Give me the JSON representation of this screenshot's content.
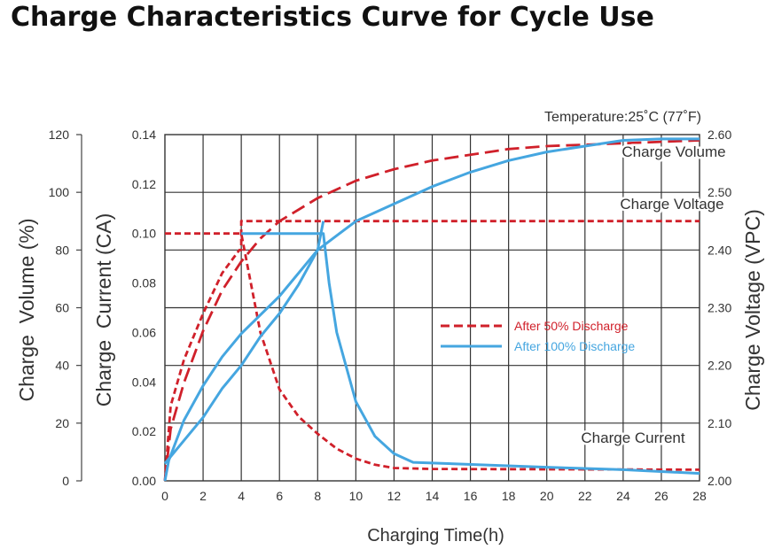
{
  "page": {
    "title": "Charge Characteristics Curve for Cycle Use"
  },
  "chart_data": {
    "type": "line",
    "title": "Charge Characteristics Curve for Cycle Use",
    "annotation": "Temperature:25˚C (77˚F)",
    "xlabel": "Charging Time(h)",
    "y_volume_label": "Charge  Volume (%)",
    "y_current_label": "Charge  Current (CA)",
    "y_voltage_label": "Charge Voltage (VPC)",
    "x": {
      "lim": [
        0,
        28
      ],
      "ticks": [
        0,
        2,
        4,
        6,
        8,
        10,
        12,
        14,
        16,
        18,
        20,
        22,
        24,
        26,
        28
      ]
    },
    "y_volume": {
      "lim": [
        0,
        120
      ],
      "ticks": [
        0,
        20,
        40,
        60,
        80,
        100,
        120
      ]
    },
    "y_current": {
      "lim": [
        0,
        0.14
      ],
      "ticks": [
        "0.00",
        "0.02",
        "0.04",
        "0.06",
        "0.08",
        "0.10",
        "0.12",
        "0.14"
      ]
    },
    "y_voltage": {
      "lim": [
        2.0,
        2.6
      ],
      "ticks": [
        "2.00",
        "2.10",
        "2.20",
        "2.30",
        "2.40",
        "2.50",
        "2.60"
      ]
    },
    "grid": true,
    "curve_labels": [
      "Charge Volume",
      "Charge Voltage",
      "Charge Current"
    ],
    "legend": {
      "placement": "center-right",
      "items": [
        {
          "name": "After 50% Discharge",
          "color": "#d0202a",
          "style": "dashed"
        },
        {
          "name": "After 100% Discharge",
          "color": "#45a6e0",
          "style": "solid"
        }
      ]
    },
    "series": [
      {
        "group": "After 50% Discharge",
        "quantity": "Charge Volume",
        "axis": "volume",
        "color": "#d0202a",
        "style": "long-dash",
        "points": [
          [
            0,
            0
          ],
          [
            0.3,
            18
          ],
          [
            1,
            34
          ],
          [
            2,
            52
          ],
          [
            3,
            66
          ],
          [
            4,
            76
          ],
          [
            5,
            84
          ],
          [
            6,
            90
          ],
          [
            8,
            98
          ],
          [
            10,
            104
          ],
          [
            12,
            108
          ],
          [
            14,
            111
          ],
          [
            16,
            113
          ],
          [
            18,
            115
          ],
          [
            20,
            116
          ],
          [
            24,
            117
          ],
          [
            28,
            118
          ]
        ]
      },
      {
        "group": "After 50% Discharge",
        "quantity": "Charge Voltage",
        "axis": "voltage",
        "color": "#d0202a",
        "style": "short-dash",
        "points": [
          [
            0,
            2.0
          ],
          [
            0.3,
            2.13
          ],
          [
            1,
            2.21
          ],
          [
            2,
            2.29
          ],
          [
            3,
            2.36
          ],
          [
            3.9,
            2.4
          ],
          [
            4.0,
            2.4
          ],
          [
            4.0,
            2.45
          ],
          [
            28,
            2.45
          ]
        ]
      },
      {
        "group": "After 50% Discharge",
        "quantity": "Charge Current",
        "axis": "current",
        "color": "#d0202a",
        "style": "short-dash",
        "points": [
          [
            0,
            0.1
          ],
          [
            4.0,
            0.1
          ],
          [
            5,
            0.06
          ],
          [
            6,
            0.037
          ],
          [
            7,
            0.026
          ],
          [
            8,
            0.019
          ],
          [
            9,
            0.013
          ],
          [
            10,
            0.009
          ],
          [
            11,
            0.0065
          ],
          [
            12,
            0.0052
          ],
          [
            14,
            0.0048
          ],
          [
            28,
            0.0045
          ]
        ]
      },
      {
        "group": "After 100% Discharge",
        "quantity": "Charge Volume",
        "axis": "volume",
        "color": "#45a6e0",
        "style": "solid",
        "points": [
          [
            0,
            0
          ],
          [
            0.2,
            7
          ],
          [
            1,
            21
          ],
          [
            2,
            33
          ],
          [
            3,
            43
          ],
          [
            4,
            51
          ],
          [
            6,
            64
          ],
          [
            8,
            80
          ],
          [
            10,
            90
          ],
          [
            12,
            96
          ],
          [
            14,
            102
          ],
          [
            16,
            107
          ],
          [
            18,
            111
          ],
          [
            20,
            114
          ],
          [
            22,
            116
          ],
          [
            24,
            118
          ],
          [
            26,
            118.5
          ],
          [
            28,
            118.5
          ]
        ]
      },
      {
        "group": "After 100% Discharge",
        "quantity": "Charge Voltage",
        "axis": "voltage",
        "color": "#45a6e0",
        "style": "solid",
        "points": [
          [
            0,
            2.03
          ],
          [
            1,
            2.07
          ],
          [
            2,
            2.11
          ],
          [
            3,
            2.16
          ],
          [
            4,
            2.2
          ],
          [
            5,
            2.25
          ],
          [
            6,
            2.29
          ],
          [
            7,
            2.34
          ],
          [
            8,
            2.4
          ],
          [
            8.3,
            2.45
          ]
        ]
      },
      {
        "group": "After 100% Discharge",
        "quantity": "Charge Current",
        "axis": "current",
        "color": "#45a6e0",
        "style": "solid",
        "points": [
          [
            4,
            0.1
          ],
          [
            8.3,
            0.1
          ],
          [
            8.6,
            0.08
          ],
          [
            9,
            0.06
          ],
          [
            10,
            0.032
          ],
          [
            11,
            0.018
          ],
          [
            12,
            0.011
          ],
          [
            13,
            0.0075
          ],
          [
            14,
            0.0072
          ],
          [
            20,
            0.0055
          ],
          [
            24,
            0.0045
          ],
          [
            28,
            0.003
          ]
        ]
      }
    ]
  }
}
